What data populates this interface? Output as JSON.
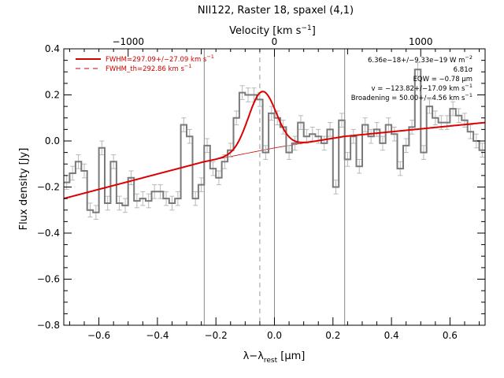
{
  "chart_data": {
    "type": "line",
    "title": "NII122, Raster 18, spaxel (4,1)",
    "xlabel": "λ−λ",
    "xlabel_sub": "rest",
    "xlabel_unit": " [μm]",
    "ylabel": "Flux density [Jy]",
    "top_axis_label": "Velocity [km s",
    "top_axis_label_sup": "−1",
    "top_axis_label_end": "]",
    "xlim": [
      -0.72,
      0.72
    ],
    "ylim": [
      -0.8,
      0.4
    ],
    "grid": false,
    "legend_position": "top-left",
    "x_ticks": [
      -0.6,
      -0.4,
      -0.2,
      0.0,
      0.2,
      0.4,
      0.6
    ],
    "x_tick_labels": [
      "−0.6",
      "−0.4",
      "−0.2",
      "0.0",
      "0.2",
      "0.4",
      "0.6"
    ],
    "y_ticks": [
      -0.8,
      -0.6,
      -0.4,
      -0.2,
      0.0,
      0.2,
      0.4
    ],
    "y_tick_labels": [
      "−0.8",
      "−0.6",
      "−0.4",
      "−0.2",
      "0.0",
      "0.2",
      "0.4"
    ],
    "velocity_ticks_um": [
      -0.5,
      0.0,
      0.5
    ],
    "velocity_tick_labels": [
      "−1000",
      "0",
      "1000"
    ],
    "vertical_lines_um": [
      -0.24,
      0.0,
      0.24
    ],
    "dashed_line_um": -0.05,
    "spectrum": {
      "x": [
        -0.71,
        -0.69,
        -0.67,
        -0.65,
        -0.63,
        -0.61,
        -0.59,
        -0.57,
        -0.55,
        -0.53,
        -0.51,
        -0.49,
        -0.47,
        -0.45,
        -0.43,
        -0.41,
        -0.39,
        -0.37,
        -0.35,
        -0.33,
        -0.31,
        -0.29,
        -0.27,
        -0.25,
        -0.23,
        -0.21,
        -0.19,
        -0.17,
        -0.15,
        -0.13,
        -0.11,
        -0.09,
        -0.07,
        -0.05,
        -0.03,
        -0.01,
        0.01,
        0.03,
        0.05,
        0.07,
        0.09,
        0.11,
        0.13,
        0.15,
        0.17,
        0.19,
        0.21,
        0.23,
        0.25,
        0.27,
        0.29,
        0.31,
        0.33,
        0.35,
        0.37,
        0.39,
        0.41,
        0.43,
        0.45,
        0.47,
        0.49,
        0.51,
        0.53,
        0.55,
        0.57,
        0.59,
        0.61,
        0.63,
        0.65,
        0.67,
        0.69,
        0.71
      ],
      "y": [
        -0.18,
        -0.14,
        -0.09,
        -0.13,
        -0.3,
        -0.31,
        -0.03,
        -0.27,
        -0.09,
        -0.27,
        -0.28,
        -0.16,
        -0.26,
        -0.25,
        -0.26,
        -0.22,
        -0.22,
        -0.25,
        -0.27,
        -0.25,
        0.07,
        0.02,
        -0.25,
        -0.19,
        -0.02,
        -0.12,
        -0.16,
        -0.09,
        -0.04,
        0.1,
        0.21,
        0.2,
        0.2,
        0.18,
        -0.05,
        0.12,
        0.1,
        0.06,
        -0.05,
        -0.01,
        0.08,
        0.02,
        0.03,
        0.02,
        -0.01,
        0.05,
        -0.2,
        0.09,
        -0.08,
        0.02,
        -0.11,
        0.07,
        0.02,
        0.05,
        -0.01,
        0.07,
        0.03,
        -0.12,
        -0.02,
        0.06,
        0.31,
        -0.05,
        0.15,
        0.1,
        0.08,
        0.08,
        0.14,
        0.11,
        0.09,
        0.04,
        0.0,
        -0.04
      ],
      "yerr": 0.03
    },
    "fit": {
      "amplitude": 0.255,
      "center": -0.042,
      "sigma": 0.047
    },
    "continuum": {
      "x": [
        -0.72,
        -0.24,
        0.0,
        0.24,
        0.72
      ],
      "y": [
        -0.25,
        -0.09,
        -0.03,
        0.02,
        0.08
      ]
    },
    "legend": [
      {
        "label": "FWHM=297.09+/−27.09 km s",
        "sup": "−1",
        "style": "solid",
        "color": "#cc0000"
      },
      {
        "label": "FWHM_th=292.86 km s",
        "sup": "−1",
        "style": "dashed",
        "color": "#cc0000"
      }
    ],
    "annotations": [
      {
        "text": "6.36e−18+/−9.33e−19 W m",
        "sup": "−2"
      },
      {
        "text": "6.81σ",
        "sup": ""
      },
      {
        "text": "EQW = −0.78 μm",
        "sup": ""
      },
      {
        "text": "v = −123.82+/−17.09 km s",
        "sup": "−1"
      },
      {
        "text": "Broadening = 50.00+/−4.56 km s",
        "sup": "−1"
      }
    ]
  }
}
